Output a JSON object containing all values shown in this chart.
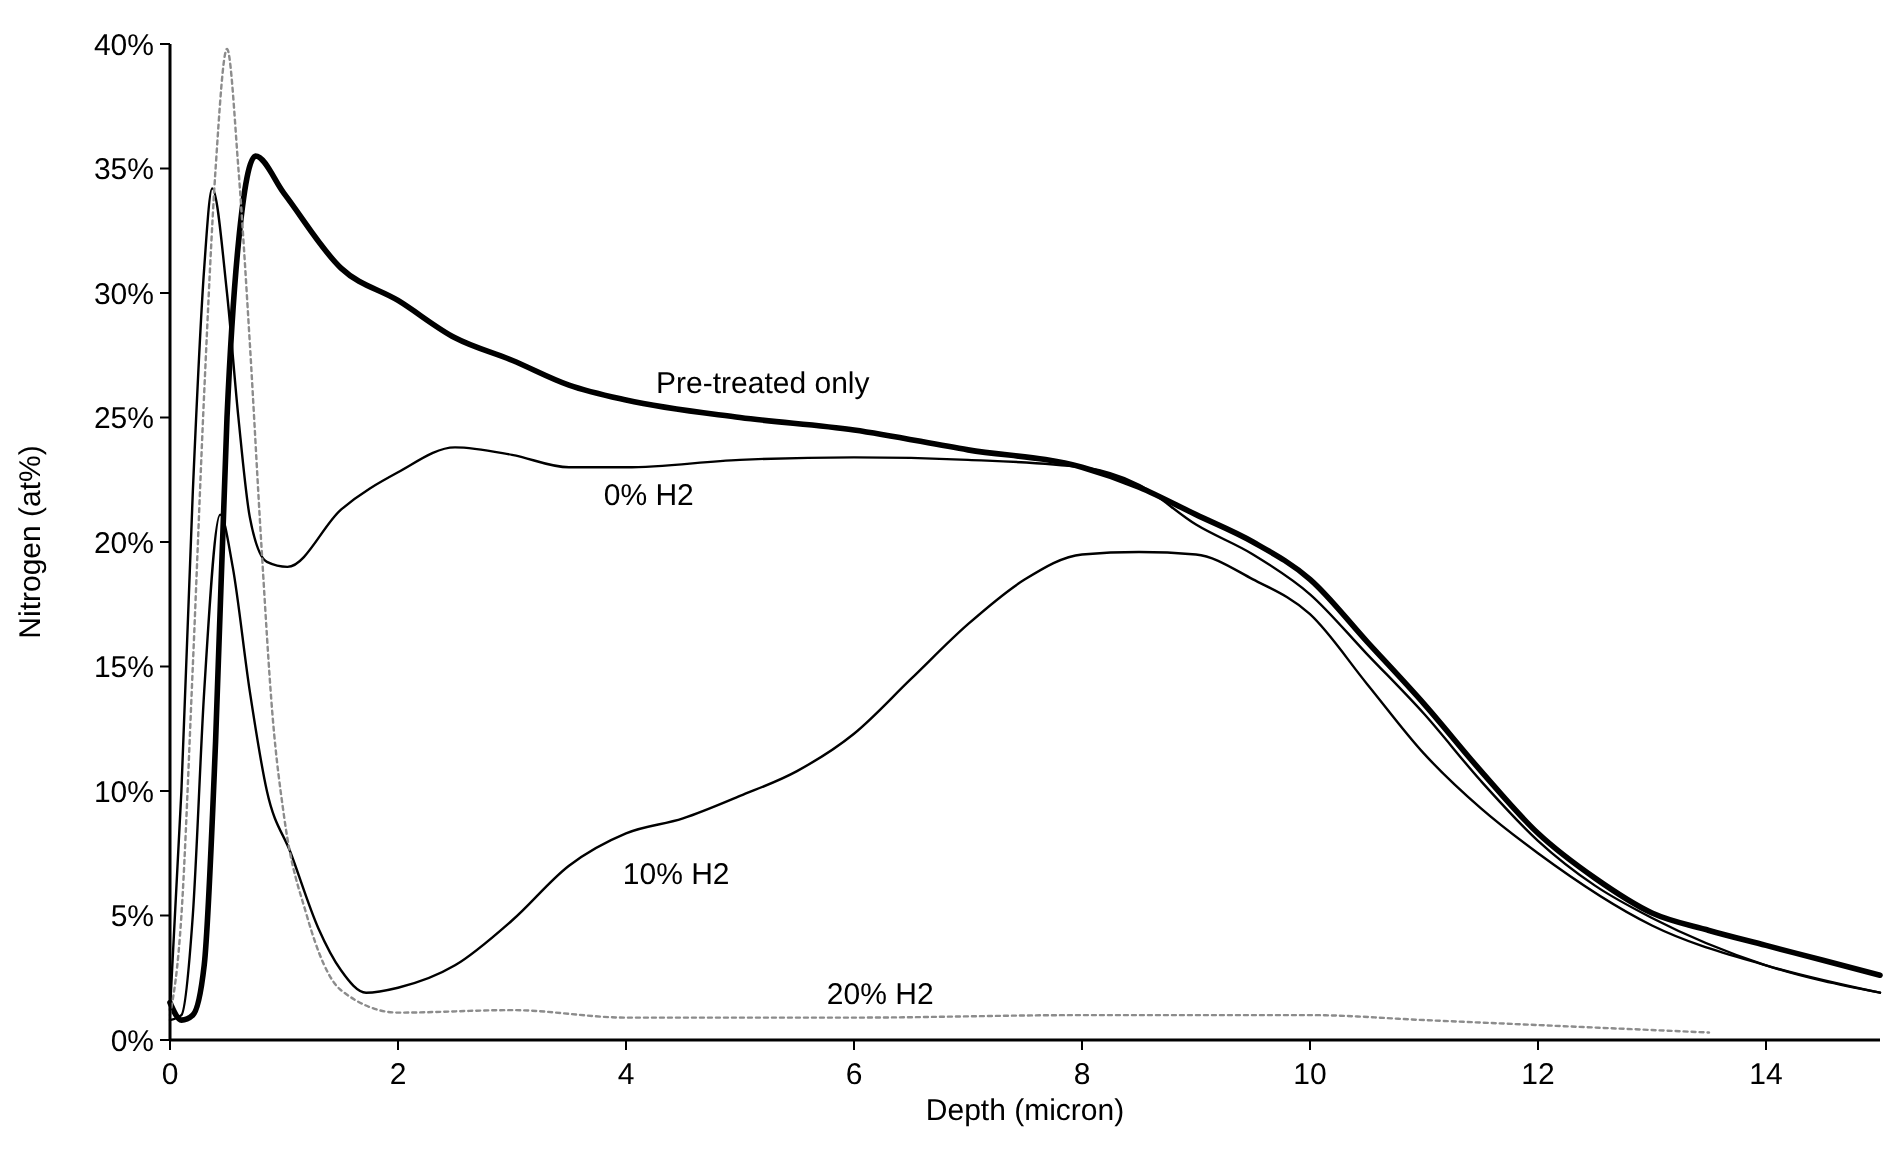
{
  "chart_data": {
    "type": "line",
    "xlabel": "Depth (micron)",
    "ylabel": "Nitrogen (at%)",
    "xlim": [
      0,
      15
    ],
    "xticks": [
      0,
      2,
      4,
      6,
      8,
      10,
      12,
      14
    ],
    "ylim": [
      0,
      40
    ],
    "yticks": [
      {
        "value": 0,
        "label": "0%"
      },
      {
        "value": 5,
        "label": "5%"
      },
      {
        "value": 10,
        "label": "10%"
      },
      {
        "value": 15,
        "label": "15%"
      },
      {
        "value": 20,
        "label": "20%"
      },
      {
        "value": 25,
        "label": "25%"
      },
      {
        "value": 30,
        "label": "30%"
      },
      {
        "value": 35,
        "label": "35%"
      },
      {
        "value": 40,
        "label": "40%"
      }
    ],
    "grid": false,
    "marker": "none",
    "series": [
      {
        "name": "Pre-treated only",
        "color": "#000000",
        "line_style": "solid",
        "x": [
          0,
          0.1,
          0.2,
          0.3,
          0.4,
          0.5,
          0.6,
          0.75,
          1,
          1.5,
          2,
          2.5,
          3,
          3.5,
          4,
          5,
          6,
          7,
          8,
          8.5,
          9,
          9.5,
          10,
          10.5,
          11,
          11.5,
          12,
          12.5,
          13,
          13.5,
          14,
          14.5,
          15
        ],
        "values": [
          1.5,
          0.8,
          1,
          3,
          12,
          25,
          32,
          35.5,
          34,
          31,
          29.7,
          28.2,
          27.3,
          26.3,
          25.7,
          25,
          24.5,
          23.7,
          23,
          22.2,
          21.1,
          20,
          18.5,
          16,
          13.5,
          10.8,
          8.3,
          6.5,
          5.1,
          4.4,
          3.8,
          3.2,
          2.6
        ]
      },
      {
        "name": "0% H2",
        "color": "#000000",
        "line_style": "solid",
        "x": [
          0,
          0.1,
          0.2,
          0.3,
          0.37,
          0.5,
          0.6,
          0.7,
          0.85,
          1.03,
          1.5,
          2,
          2.5,
          3,
          3.5,
          4,
          5,
          6,
          7,
          8,
          8.5,
          9,
          9.5,
          10,
          10.5,
          11,
          11.5,
          12,
          12.5,
          13,
          14,
          15
        ],
        "values": [
          1.2,
          10,
          22,
          31,
          34.2,
          30,
          25,
          21,
          19.2,
          19,
          21.3,
          22.8,
          23.8,
          23.5,
          23,
          23,
          23.3,
          23.4,
          23.3,
          23,
          22.3,
          20.7,
          19.5,
          17.9,
          15.5,
          13.1,
          10.4,
          8,
          6.2,
          4.9,
          3,
          1.9
        ]
      },
      {
        "name": "10% H2",
        "color": "#000000",
        "line_style": "solid",
        "x": [
          0,
          0.1,
          0.2,
          0.3,
          0.44,
          0.55,
          0.7,
          0.85,
          1.06,
          1.3,
          1.5,
          1.72,
          2,
          2.5,
          3,
          3.5,
          4,
          4.5,
          5,
          5.5,
          6,
          6.5,
          7,
          7.5,
          8,
          8.5,
          9,
          9.5,
          10,
          10.5,
          11,
          11.5,
          12,
          13,
          14,
          15
        ],
        "values": [
          0.8,
          1,
          5,
          14,
          21.1,
          19,
          14,
          10,
          7.5,
          4.5,
          2.8,
          1.9,
          2.1,
          3,
          4.8,
          7,
          8.3,
          8.9,
          9.8,
          10.8,
          12.3,
          14.5,
          16.7,
          18.5,
          19.5,
          19.6,
          19.5,
          18.5,
          17.1,
          14.3,
          11.5,
          9.3,
          7.5,
          4.6,
          3,
          1.9
        ]
      },
      {
        "name": "20% H2",
        "color": "#8c8c8c",
        "line_style": "dotted",
        "x": [
          0,
          0.1,
          0.2,
          0.3,
          0.4,
          0.5,
          0.6,
          0.7,
          0.8,
          0.9,
          1,
          1.2,
          1.5,
          2,
          3,
          4,
          6,
          8,
          10,
          11,
          12,
          13,
          13.5
        ],
        "values": [
          1,
          5,
          15,
          26,
          35,
          39.8,
          35,
          28,
          20,
          13,
          9,
          5,
          2,
          1.1,
          1.2,
          0.9,
          0.9,
          1,
          1,
          0.8,
          0.6,
          0.4,
          0.3
        ]
      }
    ]
  }
}
